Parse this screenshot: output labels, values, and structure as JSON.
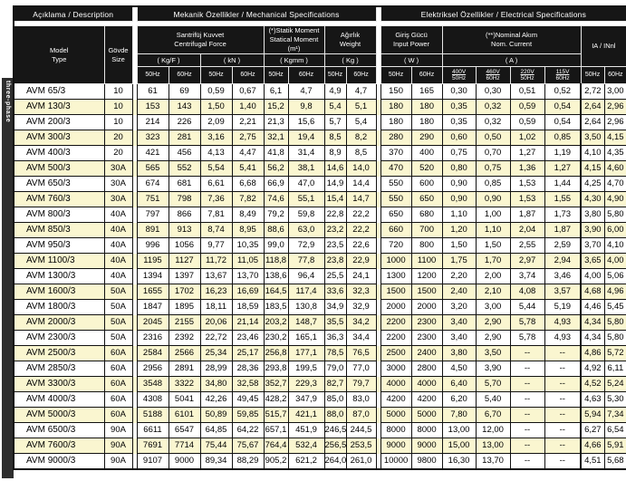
{
  "colors": {
    "header_bg": "#161616",
    "row_alt": "#faf6d0",
    "sidebar_bg": "#2e2e2e"
  },
  "sidebar": {
    "orientation_label": "three-phase"
  },
  "table": {
    "groups": {
      "description": "Açıklama / Description",
      "mechanical": "Mekanik Özellikler / Mechanical Specifications",
      "electrical": "Elektriksel Özellikler / Electrical Specifications"
    },
    "headers": {
      "model": "Model\nType",
      "size": "Gövde\nSize",
      "centrifugal": "Santrifüj Kuvvet\nCentrifugal Force",
      "centrifugal_unit_kgf": "( Kg/F )",
      "centrifugal_unit_kn": "( kN )",
      "static_moment": "(*)Statik Moment\nStatical Moment (m¹)",
      "static_moment_unit": "( Kgmm )",
      "weight": "Ağırlık\nWeight",
      "weight_unit": "( Kg )",
      "input_power": "Giriş Gücü\nInput Power",
      "input_power_unit": "( W )",
      "nominal_current": "(**)Nominal Akım\nNom. Current",
      "nominal_current_unit": "( A )",
      "ia_ratio": "IA / INnl",
      "hz50": "50Hz",
      "hz60": "60Hz",
      "volt_cols": [
        {
          "v": "400V",
          "hz": "50Hz"
        },
        {
          "v": "460V",
          "hz": "60Hz"
        },
        {
          "v": "220V",
          "hz": "50Hz"
        },
        {
          "v": "115V",
          "hz": "60Hz"
        }
      ]
    },
    "rows": [
      {
        "model": "AVM 65/3",
        "size": "10",
        "v": [
          "61",
          "69",
          "0,59",
          "0,67",
          "6,1",
          "4,7",
          "4,9",
          "4,7",
          "150",
          "165",
          "0,30",
          "0,30",
          "0,51",
          "0,52",
          "2,72",
          "3,00"
        ]
      },
      {
        "model": "AVM 130/3",
        "size": "10",
        "v": [
          "153",
          "143",
          "1,50",
          "1,40",
          "15,2",
          "9,8",
          "5,4",
          "5,1",
          "180",
          "180",
          "0,35",
          "0,32",
          "0,59",
          "0,54",
          "2,64",
          "2,96"
        ]
      },
      {
        "model": "AVM 200/3",
        "size": "10",
        "v": [
          "214",
          "226",
          "2,09",
          "2,21",
          "21,3",
          "15,6",
          "5,7",
          "5,4",
          "180",
          "180",
          "0,35",
          "0,32",
          "0,59",
          "0,54",
          "2,64",
          "2,96"
        ]
      },
      {
        "model": "AVM 300/3",
        "size": "20",
        "v": [
          "323",
          "281",
          "3,16",
          "2,75",
          "32,1",
          "19,4",
          "8,5",
          "8,2",
          "280",
          "290",
          "0,60",
          "0,50",
          "1,02",
          "0,85",
          "3,50",
          "4,15"
        ]
      },
      {
        "model": "AVM 400/3",
        "size": "20",
        "v": [
          "421",
          "456",
          "4,13",
          "4,47",
          "41,8",
          "31,4",
          "8,9",
          "8,5",
          "370",
          "400",
          "0,75",
          "0,70",
          "1,27",
          "1,19",
          "4,10",
          "4,35"
        ]
      },
      {
        "model": "AVM 500/3",
        "size": "30A",
        "v": [
          "565",
          "552",
          "5,54",
          "5,41",
          "56,2",
          "38,1",
          "14,6",
          "14,0",
          "470",
          "520",
          "0,80",
          "0,75",
          "1,36",
          "1,27",
          "4,15",
          "4,60"
        ]
      },
      {
        "model": "AVM 650/3",
        "size": "30A",
        "v": [
          "674",
          "681",
          "6,61",
          "6,68",
          "66,9",
          "47,0",
          "14,9",
          "14,4",
          "550",
          "600",
          "0,90",
          "0,85",
          "1,53",
          "1,44",
          "4,25",
          "4,70"
        ]
      },
      {
        "model": "AVM 760/3",
        "size": "30A",
        "v": [
          "751",
          "798",
          "7,36",
          "7,82",
          "74,6",
          "55,1",
          "15,4",
          "14,7",
          "550",
          "650",
          "0,90",
          "0,90",
          "1,53",
          "1,55",
          "4,30",
          "4,90"
        ]
      },
      {
        "model": "AVM 800/3",
        "size": "40A",
        "v": [
          "797",
          "866",
          "7,81",
          "8,49",
          "79,2",
          "59,8",
          "22,8",
          "22,2",
          "650",
          "680",
          "1,10",
          "1,00",
          "1,87",
          "1,73",
          "3,80",
          "5,80"
        ]
      },
      {
        "model": "AVM 850/3",
        "size": "40A",
        "v": [
          "891",
          "913",
          "8,74",
          "8,95",
          "88,6",
          "63,0",
          "23,2",
          "22,2",
          "660",
          "700",
          "1,20",
          "1,10",
          "2,04",
          "1,87",
          "3,90",
          "6,00"
        ]
      },
      {
        "model": "AVM 950/3",
        "size": "40A",
        "v": [
          "996",
          "1056",
          "9,77",
          "10,35",
          "99,0",
          "72,9",
          "23,5",
          "22,6",
          "720",
          "800",
          "1,50",
          "1,50",
          "2,55",
          "2,59",
          "3,70",
          "4,10"
        ]
      },
      {
        "model": "AVM 1100/3",
        "size": "40A",
        "v": [
          "1195",
          "1127",
          "11,72",
          "11,05",
          "118,8",
          "77,8",
          "23,8",
          "22,9",
          "1000",
          "1100",
          "1,75",
          "1,70",
          "2,97",
          "2,94",
          "3,65",
          "4,00"
        ]
      },
      {
        "model": "AVM 1300/3",
        "size": "40A",
        "v": [
          "1394",
          "1397",
          "13,67",
          "13,70",
          "138,6",
          "96,4",
          "25,5",
          "24,1",
          "1300",
          "1200",
          "2,20",
          "2,00",
          "3,74",
          "3,46",
          "4,00",
          "5,06"
        ]
      },
      {
        "model": "AVM 1600/3",
        "size": "50A",
        "v": [
          "1655",
          "1702",
          "16,23",
          "16,69",
          "164,5",
          "117,4",
          "33,6",
          "32,3",
          "1500",
          "1500",
          "2,40",
          "2,10",
          "4,08",
          "3,57",
          "4,68",
          "4,96"
        ]
      },
      {
        "model": "AVM 1800/3",
        "size": "50A",
        "v": [
          "1847",
          "1895",
          "18,11",
          "18,59",
          "183,5",
          "130,8",
          "34,9",
          "32,9",
          "2000",
          "2000",
          "3,20",
          "3,00",
          "5,44",
          "5,19",
          "4,46",
          "5,45"
        ]
      },
      {
        "model": "AVM 2000/3",
        "size": "50A",
        "v": [
          "2045",
          "2155",
          "20,06",
          "21,14",
          "203,2",
          "148,7",
          "35,5",
          "34,2",
          "2200",
          "2300",
          "3,40",
          "2,90",
          "5,78",
          "4,93",
          "4,34",
          "5,80"
        ]
      },
      {
        "model": "AVM 2300/3",
        "size": "50A",
        "v": [
          "2316",
          "2392",
          "22,72",
          "23,46",
          "230,2",
          "165,1",
          "36,3",
          "34,4",
          "2200",
          "2300",
          "3,40",
          "2,90",
          "5,78",
          "4,93",
          "4,34",
          "5,80"
        ]
      },
      {
        "model": "AVM 2500/3",
        "size": "60A",
        "v": [
          "2584",
          "2566",
          "25,34",
          "25,17",
          "256,8",
          "177,1",
          "78,5",
          "76,5",
          "2500",
          "2400",
          "3,80",
          "3,50",
          "--",
          "--",
          "4,86",
          "5,72"
        ]
      },
      {
        "model": "AVM 2850/3",
        "size": "60A",
        "v": [
          "2956",
          "2891",
          "28,99",
          "28,36",
          "293,8",
          "199,5",
          "79,0",
          "77,0",
          "3000",
          "2800",
          "4,50",
          "3,90",
          "--",
          "--",
          "4,92",
          "6,11"
        ]
      },
      {
        "model": "AVM 3300/3",
        "size": "60A",
        "v": [
          "3548",
          "3322",
          "34,80",
          "32,58",
          "352,7",
          "229,3",
          "82,7",
          "79,7",
          "4000",
          "4000",
          "6,40",
          "5,70",
          "--",
          "--",
          "4,52",
          "5,24"
        ]
      },
      {
        "model": "AVM 4000/3",
        "size": "60A",
        "v": [
          "4308",
          "5041",
          "42,26",
          "49,45",
          "428,2",
          "347,9",
          "85,0",
          "83,0",
          "4200",
          "4200",
          "6,20",
          "5,40",
          "--",
          "--",
          "4,63",
          "5,30"
        ]
      },
      {
        "model": "AVM 5000/3",
        "size": "60A",
        "v": [
          "5188",
          "6101",
          "50,89",
          "59,85",
          "515,7",
          "421,1",
          "88,0",
          "87,0",
          "5000",
          "5000",
          "7,80",
          "6,70",
          "--",
          "--",
          "5,94",
          "7,34"
        ]
      },
      {
        "model": "AVM 6500/3",
        "size": "90A",
        "v": [
          "6611",
          "6547",
          "64,85",
          "64,22",
          "657,1",
          "451,9",
          "246,5",
          "244,5",
          "8000",
          "8000",
          "13,00",
          "12,00",
          "--",
          "--",
          "6,27",
          "6,54"
        ]
      },
      {
        "model": "AVM 7600/3",
        "size": "90A",
        "v": [
          "7691",
          "7714",
          "75,44",
          "75,67",
          "764,4",
          "532,4",
          "256,5",
          "253,5",
          "9000",
          "9000",
          "15,00",
          "13,00",
          "--",
          "--",
          "4,66",
          "5,91"
        ]
      },
      {
        "model": "AVM 9000/3",
        "size": "90A",
        "v": [
          "9107",
          "9000",
          "89,34",
          "88,29",
          "905,2",
          "621,2",
          "264,0",
          "261,0",
          "10000",
          "9800",
          "16,30",
          "13,70",
          "--",
          "--",
          "4,51",
          "5,68"
        ]
      }
    ]
  }
}
